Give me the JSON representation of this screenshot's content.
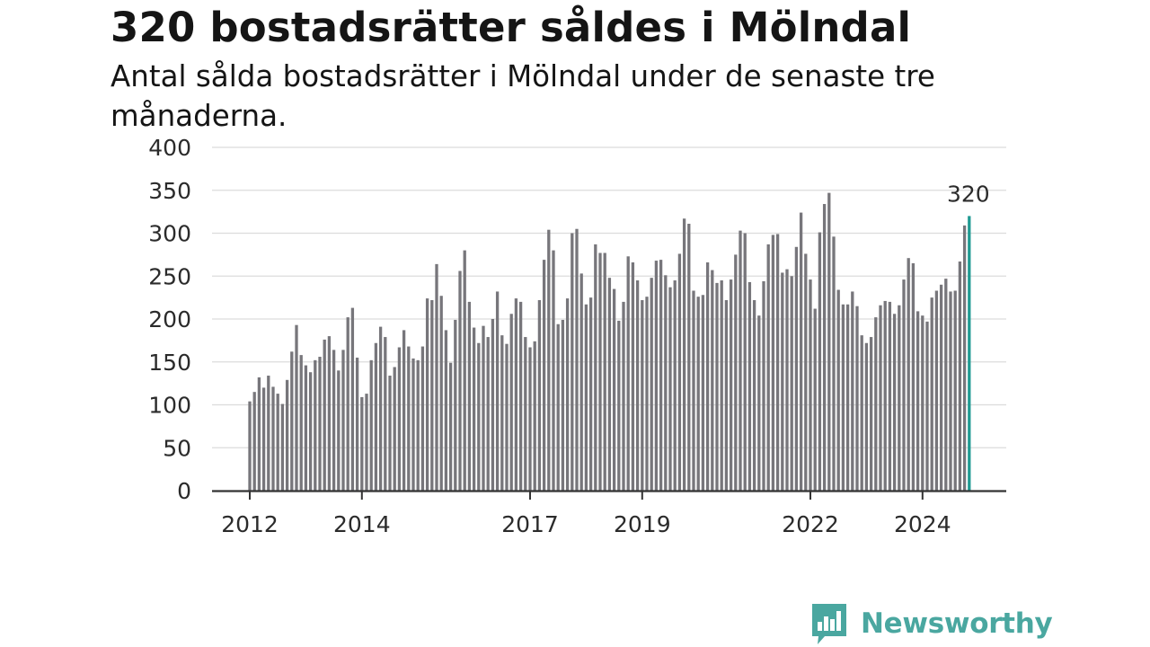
{
  "header": {
    "title": "320 bostadsrätter såldes i Mölndal",
    "subtitle": "Antal sålda bostadsrätter i Mölndal under de senaste tre månaderna."
  },
  "brand": {
    "name": "Newsworthy",
    "logo_icon": "bar-chart-speech-bubble-icon",
    "color": "#4aa7a0"
  },
  "chart_data": {
    "type": "bar",
    "title": "320 bostadsrätter såldes i Mölndal",
    "subtitle": "Antal sålda bostadsrätter i Mölndal under de senaste tre månaderna.",
    "xlabel": "",
    "ylabel": "",
    "ylim": [
      0,
      400
    ],
    "yticks": [
      0,
      50,
      100,
      150,
      200,
      250,
      300,
      350,
      400
    ],
    "x_tick_labels": [
      "2012",
      "2014",
      "2017",
      "2019",
      "2022",
      "2024"
    ],
    "grid": true,
    "bar_color": "#77767b",
    "highlight_color": "#1f9a92",
    "highlight_label": "320",
    "start": "2012-01",
    "frequency": "monthly",
    "values": [
      104,
      115,
      132,
      120,
      134,
      121,
      113,
      101,
      129,
      162,
      193,
      158,
      146,
      138,
      152,
      156,
      176,
      180,
      164,
      140,
      164,
      202,
      213,
      155,
      109,
      113,
      152,
      172,
      191,
      179,
      134,
      144,
      167,
      187,
      168,
      154,
      152,
      168,
      224,
      222,
      264,
      227,
      187,
      149,
      199,
      256,
      280,
      220,
      190,
      172,
      192,
      179,
      200,
      232,
      181,
      171,
      206,
      224,
      220,
      179,
      167,
      174,
      222,
      269,
      304,
      280,
      194,
      199,
      224,
      300,
      305,
      253,
      217,
      225,
      287,
      277,
      277,
      248,
      235,
      198,
      220,
      273,
      266,
      245,
      222,
      226,
      248,
      268,
      269,
      251,
      237,
      245,
      276,
      317,
      311,
      233,
      226,
      228,
      266,
      257,
      242,
      245,
      222,
      246,
      275,
      303,
      300,
      243,
      222,
      204,
      244,
      287,
      298,
      299,
      254,
      258,
      250,
      284,
      324,
      276,
      246,
      212,
      301,
      334,
      347,
      296,
      234,
      217,
      217,
      232,
      215,
      181,
      172,
      179,
      202,
      216,
      221,
      220,
      206,
      216,
      246,
      271,
      265,
      209,
      204,
      197,
      225,
      233,
      240,
      247,
      232,
      233,
      267,
      309,
      320
    ]
  }
}
